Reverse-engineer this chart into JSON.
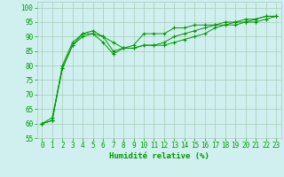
{
  "xlabel": "Humidité relative (%)",
  "background_color": "#cff0ee",
  "grid_color": "#aaccbb",
  "line_color": "#009900",
  "marker": "+",
  "xlim": [
    -0.5,
    23.5
  ],
  "ylim": [
    55,
    102
  ],
  "yticks": [
    55,
    60,
    65,
    70,
    75,
    80,
    85,
    90,
    95,
    100
  ],
  "xticks": [
    0,
    1,
    2,
    3,
    4,
    5,
    6,
    7,
    8,
    9,
    10,
    11,
    12,
    13,
    14,
    15,
    16,
    17,
    18,
    19,
    20,
    21,
    22,
    23
  ],
  "series": [
    [
      60,
      61,
      79,
      87,
      91,
      91,
      90,
      88,
      86,
      86,
      87,
      87,
      88,
      90,
      91,
      92,
      93,
      94,
      94,
      95,
      95,
      96,
      97,
      97
    ],
    [
      60,
      61,
      80,
      88,
      91,
      92,
      90,
      85,
      86,
      87,
      91,
      91,
      91,
      93,
      93,
      94,
      94,
      94,
      95,
      95,
      96,
      96,
      97,
      97
    ],
    [
      60,
      62,
      79,
      87,
      90,
      91,
      88,
      84,
      86,
      86,
      87,
      87,
      87,
      88,
      89,
      90,
      91,
      93,
      94,
      94,
      95,
      95,
      96,
      97
    ]
  ],
  "xlabel_fontsize": 6.5,
  "tick_fontsize": 5.5
}
